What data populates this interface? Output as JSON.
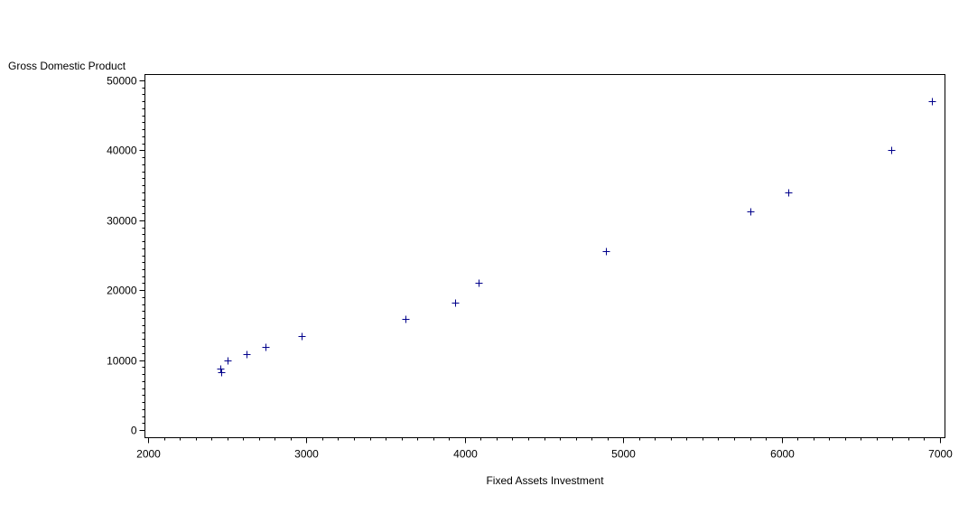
{
  "chart_data": {
    "type": "scatter",
    "title": "",
    "xlabel": "Fixed Assets Investment",
    "ylabel": "Gross Domestic Product",
    "xlim": [
      2000,
      7000
    ],
    "ylim": [
      0,
      50000
    ],
    "x_ticks": [
      "2000",
      "3000",
      "4000",
      "5000",
      "6000",
      "7000"
    ],
    "y_ticks": [
      "0",
      "10000",
      "20000",
      "30000",
      "40000",
      "50000"
    ],
    "grid": false,
    "marker": "plus",
    "marker_color": "#00008b",
    "points": [
      {
        "x": 2455,
        "y": 8800
      },
      {
        "x": 2462,
        "y": 8300
      },
      {
        "x": 2500,
        "y": 9900
      },
      {
        "x": 2620,
        "y": 10900
      },
      {
        "x": 2740,
        "y": 11900
      },
      {
        "x": 2970,
        "y": 13500
      },
      {
        "x": 3625,
        "y": 15900
      },
      {
        "x": 3940,
        "y": 18200
      },
      {
        "x": 4085,
        "y": 21100
      },
      {
        "x": 4890,
        "y": 25600
      },
      {
        "x": 5800,
        "y": 31300
      },
      {
        "x": 6040,
        "y": 34000
      },
      {
        "x": 6690,
        "y": 40000
      },
      {
        "x": 6950,
        "y": 47000
      }
    ]
  }
}
